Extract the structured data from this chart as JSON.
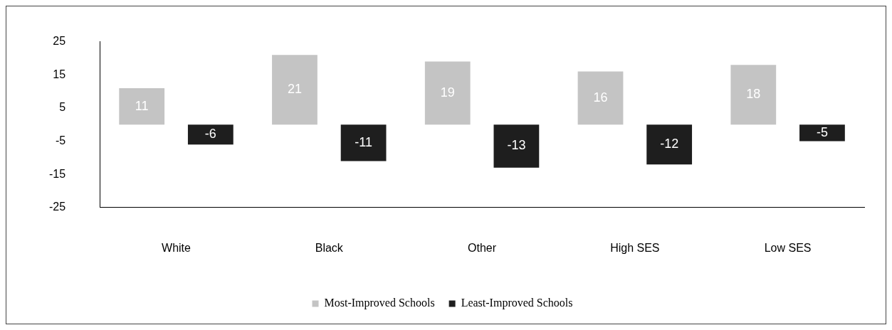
{
  "chart_data": {
    "type": "bar",
    "categories": [
      "White",
      "Black",
      "Other",
      "High SES",
      "Low SES"
    ],
    "series": [
      {
        "name": "Most-Improved Schools",
        "color": "#c4c4c4",
        "values": [
          11,
          21,
          19,
          16,
          18
        ]
      },
      {
        "name": "Least-Improved Schools",
        "color": "#1e1e1e",
        "values": [
          -6,
          -11,
          -13,
          -12,
          -5
        ]
      }
    ],
    "ylim": [
      -25,
      25
    ],
    "yticks": [
      25,
      15,
      5,
      -5,
      -15,
      -25
    ],
    "grid": false,
    "legend": "bottom",
    "data_labels": true
  }
}
